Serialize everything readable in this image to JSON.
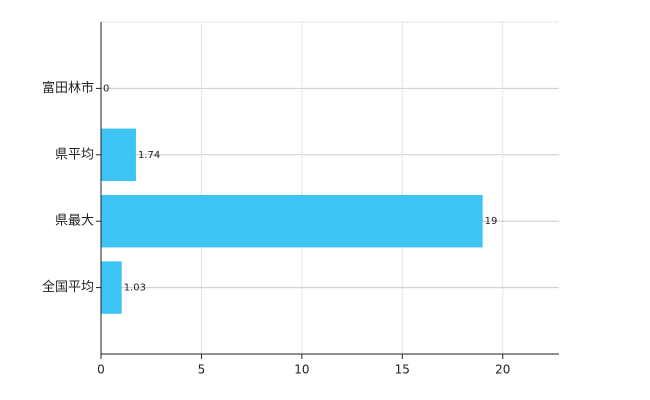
{
  "chart_data": {
    "type": "bar",
    "orientation": "horizontal",
    "categories": [
      "富田林市",
      "県平均",
      "県最大",
      "全国平均"
    ],
    "values": [
      0,
      1.74,
      19,
      1.03
    ],
    "color": "#3ec4f4",
    "xlim": [
      0,
      22.8
    ],
    "xticks": [
      0,
      5,
      10,
      15,
      20
    ],
    "grid": true
  }
}
